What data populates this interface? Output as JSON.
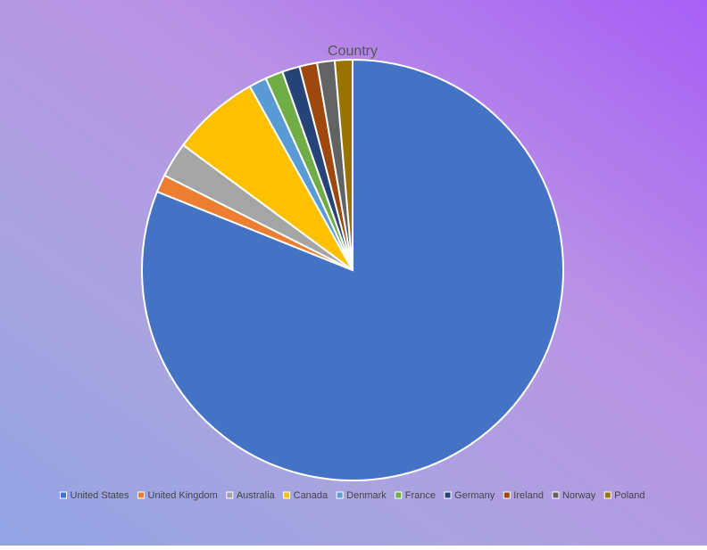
{
  "chart_data": {
    "type": "pie",
    "title": "Country",
    "categories": [
      "United States",
      "United Kingdom",
      "Australia",
      "Canada",
      "Denmark",
      "France",
      "Germany",
      "Ireland",
      "Norway",
      "Poland"
    ],
    "values": [
      60,
      1,
      2,
      5,
      1,
      1,
      1,
      1,
      1,
      1
    ],
    "colors": [
      "#4472c4",
      "#ed7d31",
      "#a5a5a5",
      "#ffc000",
      "#5b9bd5",
      "#70ad47",
      "#264478",
      "#9e480e",
      "#636363",
      "#997300"
    ],
    "legend": "bottom"
  }
}
